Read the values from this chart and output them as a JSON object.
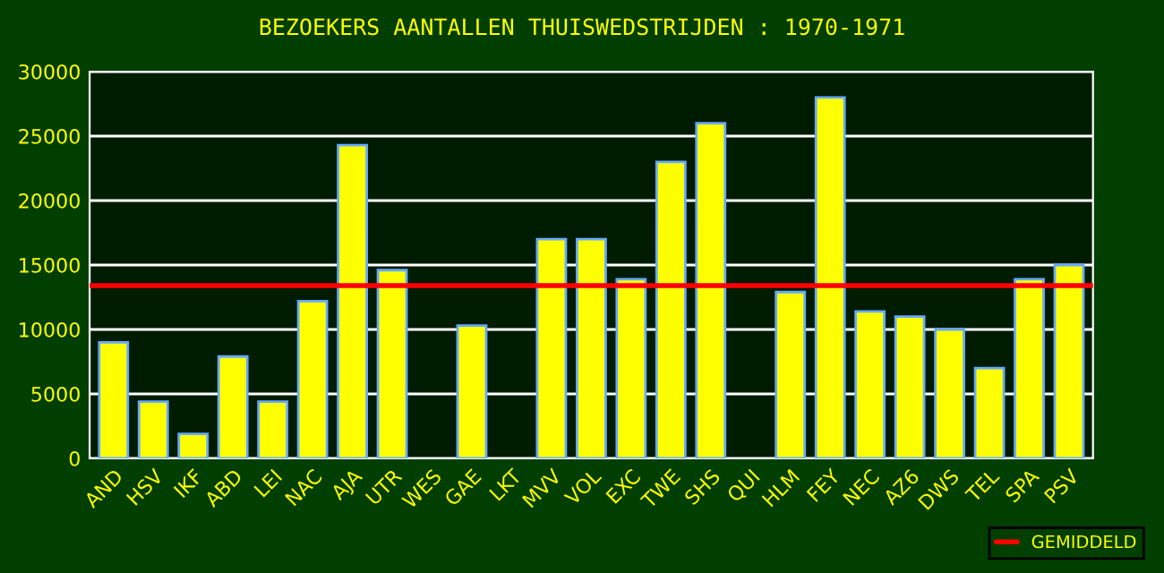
{
  "chart_data": {
    "type": "bar",
    "title": "BEZOEKERS AANTALLEN THUISWEDSTRIJDEN : 1970-1971",
    "categories": [
      "AND",
      "HSV",
      "IKF",
      "ABD",
      "LEI",
      "NAC",
      "AJA",
      "UTR",
      "WES",
      "GAE",
      "LKT",
      "MVV",
      "VOL",
      "EXC",
      "TWE",
      "SHS",
      "QUI",
      "HLM",
      "FEY",
      "NEC",
      "AZ6",
      "DWS",
      "TEL",
      "SPA",
      "PSV"
    ],
    "values": [
      9000,
      4400,
      1900,
      7900,
      4400,
      12200,
      24300,
      14600,
      null,
      10300,
      null,
      17000,
      17000,
      13900,
      23000,
      26000,
      null,
      12900,
      28000,
      11400,
      11000,
      10000,
      7000,
      13900,
      15000
    ],
    "color": "#ffff00",
    "ylim": [
      0,
      30000
    ],
    "yticks": [
      0,
      5000,
      10000,
      15000,
      20000,
      25000,
      30000
    ],
    "grid": "y",
    "ref_lines": [
      {
        "axis": "y",
        "value": 13400,
        "label": "GEMIDDELD",
        "color": "#ff0000"
      }
    ],
    "legend": "bottom right"
  }
}
